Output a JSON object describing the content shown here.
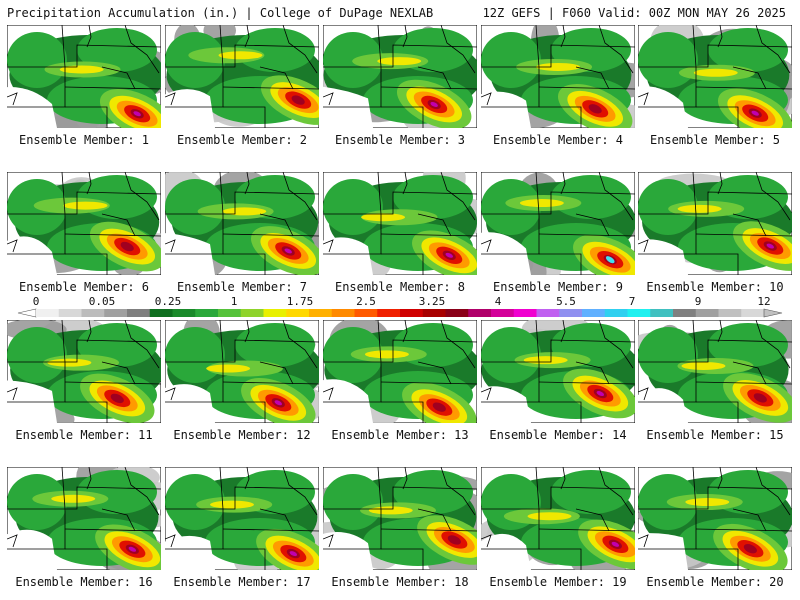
{
  "header": {
    "left": "Precipitation Accumulation (in.) | College of DuPage NEXLAB",
    "right": "12Z GEFS | F060 Valid: 00Z MON MAY 26 2025"
  },
  "member_label_prefix": "Ensemble Member: ",
  "members": [
    "1",
    "2",
    "3",
    "4",
    "5",
    "6",
    "7",
    "8",
    "9",
    "10",
    "11",
    "12",
    "13",
    "14",
    "15",
    "16",
    "17",
    "18",
    "19",
    "20"
  ],
  "colorbar": {
    "labels": [
      "0",
      "0.05",
      "0.25",
      "1",
      "1.75",
      "2.5",
      "3.25",
      "4",
      "5.5",
      "7",
      "9",
      "12"
    ],
    "colors": [
      "#f0f0f0",
      "#d8d8d8",
      "#bcbcbc",
      "#a0a0a0",
      "#7f7f7f",
      "#0f6f1f",
      "#1a8a2a",
      "#2aa83a",
      "#55c23a",
      "#8fd32a",
      "#e8f000",
      "#ffd800",
      "#ffb000",
      "#ff8a00",
      "#ff5a00",
      "#f02000",
      "#d00000",
      "#a80000",
      "#8a0018",
      "#b0006a",
      "#d4009a",
      "#f000d0",
      "#c060f0",
      "#9090f0",
      "#60b0ff",
      "#30d0f0",
      "#20f0f0",
      "#40c0c0",
      "#808080",
      "#a0a0a0",
      "#c0c0c0",
      "#d8d8d8"
    ]
  },
  "map_colors": {
    "background": "#ffffff",
    "light_gray": "#c8c8c8",
    "gray": "#9a9a9a",
    "dark_green": "#1a7a2a",
    "green": "#2aa83a",
    "light_green": "#6cc83a",
    "yellow": "#f0e800",
    "orange": "#ff9a00",
    "red": "#e01000",
    "dark_red": "#a00020",
    "magenta": "#c000b0",
    "cyan": "#40e0f0",
    "borders": "#000000"
  }
}
